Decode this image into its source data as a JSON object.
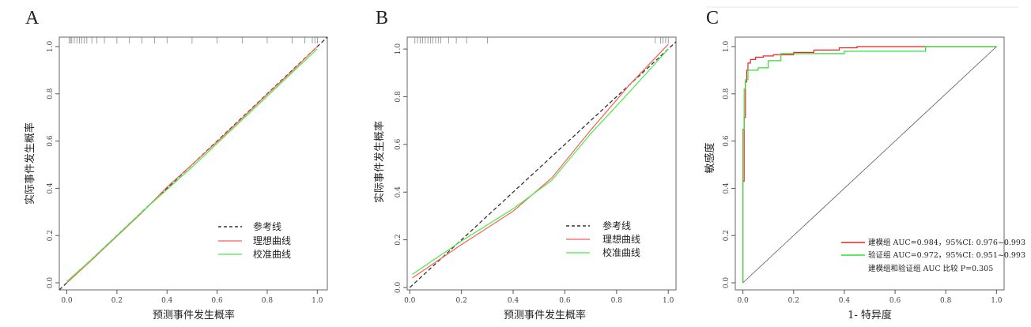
{
  "chart_data": [
    {
      "type": "line",
      "panel_label": "A",
      "xlabel": "预测事件发生概率",
      "ylabel": "实际事件发生概率",
      "xlim": [
        -0.03,
        1.04
      ],
      "ylim": [
        -0.03,
        1.04
      ],
      "x_ticks": [
        "0.0",
        "0.2",
        "0.4",
        "0.6",
        "0.8",
        "1.0"
      ],
      "y_ticks": [
        "0.0",
        "0.2",
        "0.4",
        "0.6",
        "0.8",
        "1.0"
      ],
      "legend_position": "bottom-right",
      "series": [
        {
          "name": "参考线",
          "color": "#333333",
          "dashed": true,
          "x": [
            -0.03,
            1.04
          ],
          "y": [
            -0.03,
            1.04
          ]
        },
        {
          "name": "理想曲线",
          "color": "#ff5a5a",
          "x": [
            0.0,
            0.1,
            0.2,
            0.3,
            0.4,
            0.5,
            0.6,
            0.7,
            0.8,
            0.9,
            1.0
          ],
          "y": [
            0.0,
            0.097,
            0.197,
            0.297,
            0.405,
            0.5,
            0.597,
            0.697,
            0.798,
            0.897,
            1.0
          ]
        },
        {
          "name": "校准曲线",
          "color": "#44ee44",
          "x": [
            0.0,
            0.1,
            0.2,
            0.3,
            0.4,
            0.5,
            0.6,
            0.7,
            0.8,
            0.9,
            1.0
          ],
          "y": [
            0.005,
            0.1,
            0.2,
            0.3,
            0.395,
            0.49,
            0.59,
            0.69,
            0.79,
            0.89,
            0.99
          ]
        }
      ],
      "rug_x": [
        0.01,
        0.015,
        0.02,
        0.03,
        0.04,
        0.05,
        0.06,
        0.07,
        0.08,
        0.1,
        0.12,
        0.15,
        0.2,
        0.25,
        0.3,
        0.35,
        0.4,
        0.5,
        0.6,
        0.7,
        0.8,
        0.9,
        0.95,
        0.98,
        0.99,
        1.0
      ]
    },
    {
      "type": "line",
      "panel_label": "B",
      "xlabel": "预测事件发生概率",
      "ylabel": "实际事件发生概率",
      "xlim": [
        -0.01,
        1.03
      ],
      "ylim": [
        -0.01,
        1.05
      ],
      "x_ticks": [
        "0.0",
        "0.2",
        "0.4",
        "0.6",
        "0.8",
        "1.0"
      ],
      "y_ticks": [
        "0.0",
        "0.2",
        "0.4",
        "0.6",
        "0.8",
        "1.0"
      ],
      "legend_position": "bottom-right",
      "series": [
        {
          "name": "参考线",
          "color": "#333333",
          "dashed": true,
          "x": [
            0.0,
            1.03
          ],
          "y": [
            0.0,
            1.03
          ]
        },
        {
          "name": "理想曲线",
          "color": "#ff5a5a",
          "x": [
            0.01,
            0.2,
            0.4,
            0.55,
            0.7,
            0.85,
            1.0
          ],
          "y": [
            0.04,
            0.18,
            0.32,
            0.46,
            0.66,
            0.85,
            1.02
          ]
        },
        {
          "name": "校准曲线",
          "color": "#44ee44",
          "x": [
            0.01,
            0.2,
            0.4,
            0.55,
            0.7,
            0.85,
            1.0
          ],
          "y": [
            0.055,
            0.195,
            0.33,
            0.45,
            0.645,
            0.82,
            1.0
          ]
        }
      ],
      "rug_x": [
        0.02,
        0.03,
        0.04,
        0.05,
        0.06,
        0.07,
        0.08,
        0.09,
        0.1,
        0.11,
        0.12,
        0.15,
        0.18,
        0.22,
        0.3,
        0.95,
        0.97,
        0.98,
        0.99,
        1.0
      ]
    },
    {
      "type": "line",
      "panel_label": "C",
      "xlabel": "1- 特异度",
      "ylabel": "敏感度",
      "xlim": [
        -0.03,
        1.03
      ],
      "ylim": [
        -0.03,
        1.04
      ],
      "x_ticks": [
        "0.0",
        "0.2",
        "0.4",
        "0.6",
        "0.8",
        "1.0"
      ],
      "y_ticks": [
        "0.0",
        "0.2",
        "0.4",
        "0.6",
        "0.8",
        "1.0"
      ],
      "legend_position": "bottom-right",
      "legend_note": "建模组和验证组 AUC 比较 P=0.305",
      "series": [
        {
          "name": "建模组 AUC=0.984，95%CI: 0.976~0.993",
          "color": "#ee2222",
          "x": [
            0.0,
            0.0,
            0.005,
            0.005,
            0.01,
            0.01,
            0.015,
            0.015,
            0.02,
            0.02,
            0.03,
            0.03,
            0.05,
            0.05,
            0.08,
            0.08,
            0.12,
            0.12,
            0.2,
            0.2,
            0.28,
            0.28,
            0.38,
            0.38,
            0.45,
            0.45,
            1.0
          ],
          "y": [
            0.0,
            0.43,
            0.43,
            0.7,
            0.7,
            0.85,
            0.85,
            0.9,
            0.9,
            0.93,
            0.93,
            0.945,
            0.945,
            0.955,
            0.955,
            0.96,
            0.96,
            0.965,
            0.965,
            0.975,
            0.975,
            0.985,
            0.985,
            0.995,
            0.995,
            1.0,
            1.0
          ]
        },
        {
          "name": "验证组 AUC=0.972，95%CI: 0.951~0.993",
          "color": "#33dd33",
          "x": [
            0.0,
            0.0,
            0.005,
            0.005,
            0.01,
            0.01,
            0.02,
            0.02,
            0.06,
            0.06,
            0.1,
            0.1,
            0.15,
            0.15,
            0.4,
            0.4,
            0.72,
            0.72,
            1.0
          ],
          "y": [
            0.0,
            0.65,
            0.65,
            0.82,
            0.82,
            0.86,
            0.86,
            0.9,
            0.9,
            0.91,
            0.91,
            0.94,
            0.94,
            0.97,
            0.97,
            0.98,
            0.98,
            1.0,
            1.0
          ]
        },
        {
          "name": "",
          "color": "#555555",
          "x": [
            0.0,
            1.0
          ],
          "y": [
            0.0,
            1.0
          ]
        }
      ]
    }
  ]
}
